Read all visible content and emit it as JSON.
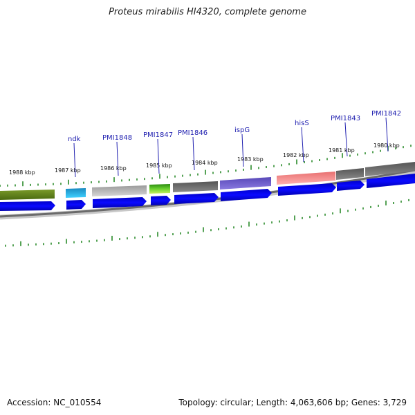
{
  "title": "Proteus mirabilis HI4320, complete genome",
  "footer": {
    "accession": "Accession: NC_010554",
    "info": "Topology: circular; Length: 4,063,606 bp; Genes: 3,729"
  },
  "ruler_labels": [
    "1988 kbp",
    "1987 kbp",
    "1986 kbp",
    "1985 kbp",
    "1984 kbp",
    "1983 kbp",
    "1982 kbp",
    "1981 kbp",
    "1980 kbp"
  ],
  "genes": [
    {
      "name": "ndk",
      "color": "#29a9e0"
    },
    {
      "name": "PMI1848",
      "color": "#b0b0b0"
    },
    {
      "name": "PMI1847",
      "color": "#4caf1a"
    },
    {
      "name": "PMI1846",
      "color": "#606060"
    },
    {
      "name": "ispG",
      "color": "#6a5acd"
    },
    {
      "name": "hisS",
      "color": "#f08080"
    },
    {
      "name": "PMI1843",
      "color": "#707070"
    },
    {
      "name": "PMI1842",
      "color": "#6a6a6a"
    }
  ],
  "colors": {
    "cds_strand": "#0000ee",
    "tick": "#2a8a2a",
    "backbone": "#7a7a7a",
    "first_gene": "#6b8e23"
  }
}
